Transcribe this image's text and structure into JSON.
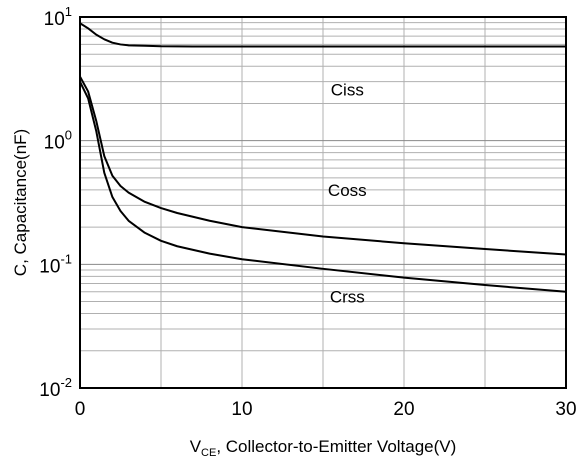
{
  "chart_data": {
    "type": "line",
    "title": "",
    "xlabel": {
      "prefix": "V",
      "subscript": "CE",
      "rest": ", Collector-to-Emitter Voltage(V)"
    },
    "ylabel": "C, Capacitance(nF)",
    "xlim": [
      0,
      30
    ],
    "ylim": [
      0.01,
      10
    ],
    "yscale": "log",
    "grid": true,
    "x_ticks": [
      0,
      5,
      10,
      15,
      20,
      25,
      30
    ],
    "x_tick_labels": [
      "0",
      "",
      "10",
      "",
      "20",
      "",
      "30"
    ],
    "y_tick_labels": [
      {
        "value": 10,
        "base": "10",
        "exp": "1"
      },
      {
        "value": 1,
        "base": "10",
        "exp": "0"
      },
      {
        "value": 0.1,
        "base": "10",
        "exp": "-1"
      },
      {
        "value": 0.01,
        "base": "10",
        "exp": "-2"
      }
    ],
    "series": [
      {
        "name": "Ciss",
        "x": [
          0,
          0.5,
          1,
          1.5,
          2,
          2.5,
          3,
          4,
          5,
          7,
          10,
          15,
          20,
          25,
          30
        ],
        "y": [
          8.9,
          8.1,
          7.2,
          6.6,
          6.2,
          6.0,
          5.9,
          5.85,
          5.8,
          5.78,
          5.78,
          5.78,
          5.78,
          5.78,
          5.78
        ]
      },
      {
        "name": "Coss",
        "x": [
          0,
          0.5,
          1,
          1.5,
          2,
          2.5,
          3,
          4,
          5,
          6,
          8,
          10,
          15,
          20,
          25,
          30
        ],
        "y": [
          3.3,
          2.5,
          1.45,
          0.75,
          0.52,
          0.43,
          0.38,
          0.32,
          0.285,
          0.26,
          0.225,
          0.2,
          0.168,
          0.148,
          0.133,
          0.12
        ]
      },
      {
        "name": "Crss",
        "x": [
          0,
          0.5,
          1,
          1.5,
          2,
          2.5,
          3,
          4,
          5,
          6,
          8,
          10,
          15,
          20,
          25,
          30
        ],
        "y": [
          3.0,
          2.2,
          1.2,
          0.55,
          0.35,
          0.27,
          0.225,
          0.18,
          0.155,
          0.14,
          0.122,
          0.11,
          0.092,
          0.078,
          0.068,
          0.06
        ]
      }
    ],
    "annotations": [
      {
        "text": "Ciss",
        "x": 16.5,
        "y": 2.6
      },
      {
        "text": "Coss",
        "x": 16.5,
        "y": 0.4
      },
      {
        "text": "Crss",
        "x": 16.5,
        "y": 0.055
      }
    ],
    "colors": {
      "line": "#000000",
      "grid": "#b0b0b0",
      "frame": "#000000"
    }
  }
}
